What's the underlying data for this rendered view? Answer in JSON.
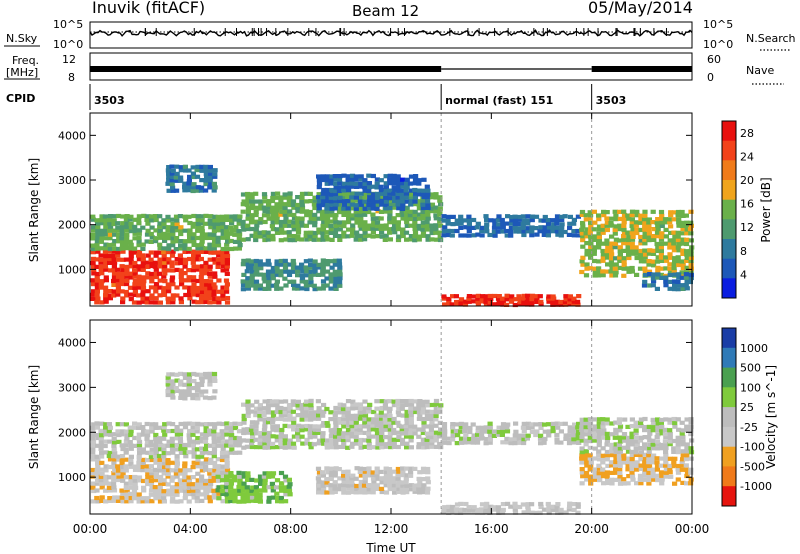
{
  "header": {
    "station": "Inuvik (fitACF)",
    "beam": "Beam 12",
    "date": "05/May/2014"
  },
  "noise_panel": {
    "left_label": "N.Sky",
    "right_label": "N.Search",
    "left_ticks": [
      "10^5",
      "10^0"
    ],
    "right_ticks": [
      "10^5",
      "10^0"
    ],
    "right_line_style": "dotted"
  },
  "freq_panel": {
    "left_label_top": "Freq.",
    "left_label_bottom": "[MHz]",
    "right_label": "Nave",
    "left_ticks": [
      "12",
      "8"
    ],
    "right_ticks": [
      "60",
      "0"
    ],
    "right_line_style": "dotted"
  },
  "cpid_panel": {
    "label": "CPID",
    "segments": [
      {
        "label": "3503",
        "start_hour": 0,
        "end_hour": 14
      },
      {
        "label": "normal (fast) 151",
        "start_hour": 14,
        "end_hour": 20
      },
      {
        "label": "3503",
        "start_hour": 20,
        "end_hour": 24
      }
    ]
  },
  "x_axis": {
    "label": "Time UT",
    "ticks": [
      "00:00",
      "04:00",
      "08:00",
      "12:00",
      "16:00",
      "20:00",
      "00:00"
    ],
    "tick_hours": [
      0,
      4,
      8,
      12,
      16,
      20,
      24
    ]
  },
  "colors": {
    "power": [
      "#0a1de0",
      "#1d58b8",
      "#2e7a9e",
      "#4e9a6f",
      "#6ab04a",
      "#f0a41c",
      "#f07b1a",
      "#f2421a",
      "#e8100e"
    ],
    "velocity": [
      "#1a3da6",
      "#2f7ab7",
      "#4aa050",
      "#7fca3c",
      "#bdbdbd",
      "#c8c8c8",
      "#f0a020",
      "#f07a1a",
      "#e6140e"
    ]
  },
  "chart_data": [
    {
      "type": "heatmap",
      "title": "",
      "xlabel": "Time UT",
      "ylabel": "Slant Range [km]",
      "xlim": [
        0,
        24
      ],
      "ylim": [
        180,
        4500
      ],
      "yticks": [
        1000,
        2000,
        3000,
        4000
      ],
      "colorbar": {
        "label": "Power [dB]",
        "ticks": [
          "4",
          "8",
          "12",
          "16",
          "20",
          "24",
          "28"
        ],
        "range": [
          0,
          30
        ]
      },
      "echo_regions": [
        {
          "t0": 0.0,
          "t1": 5.5,
          "r0": 300,
          "r1": 1500,
          "value": 26
        },
        {
          "t0": 0.0,
          "t1": 6.0,
          "r0": 1500,
          "r1": 2300,
          "value": 14
        },
        {
          "t0": 3.0,
          "t1": 5.0,
          "r0": 2800,
          "r1": 3400,
          "value": 8
        },
        {
          "t0": 6.0,
          "t1": 14.0,
          "r0": 1700,
          "r1": 2800,
          "value": 14
        },
        {
          "t0": 6.0,
          "t1": 10.0,
          "r0": 600,
          "r1": 1300,
          "value": 10
        },
        {
          "t0": 9.0,
          "t1": 13.5,
          "r0": 2400,
          "r1": 3200,
          "value": 6
        },
        {
          "t0": 14.0,
          "t1": 19.5,
          "r0": 1800,
          "r1": 2300,
          "value": 7
        },
        {
          "t0": 14.0,
          "t1": 19.5,
          "r0": 250,
          "r1": 500,
          "value": 27
        },
        {
          "t0": 19.5,
          "t1": 24.0,
          "r0": 900,
          "r1": 2400,
          "value": 16
        },
        {
          "t0": 22.0,
          "t1": 24.0,
          "r0": 600,
          "r1": 1000,
          "value": 8
        }
      ]
    },
    {
      "type": "heatmap",
      "title": "",
      "xlabel": "Time UT",
      "ylabel": "Slant Range [km]",
      "xlim": [
        0,
        24
      ],
      "ylim": [
        180,
        4500
      ],
      "yticks": [
        1000,
        2000,
        3000,
        4000
      ],
      "colorbar": {
        "label": "Velocity [m s^-1]",
        "ticks": [
          "1000",
          "500",
          "100",
          "25",
          "-25",
          "-100",
          "-500",
          "-1000"
        ],
        "range": [
          -1200,
          1200
        ]
      },
      "echo_regions": [
        {
          "t0": 0.0,
          "t1": 5.5,
          "r0": 500,
          "r1": 1500,
          "value": -300
        },
        {
          "t0": 0.0,
          "t1": 6.0,
          "r0": 1500,
          "r1": 2300,
          "value": 0
        },
        {
          "t0": 3.0,
          "t1": 5.0,
          "r0": 2800,
          "r1": 3400,
          "value": 0
        },
        {
          "t0": 5.0,
          "t1": 8.0,
          "r0": 500,
          "r1": 1200,
          "value": 300
        },
        {
          "t0": 6.0,
          "t1": 14.0,
          "r0": 1700,
          "r1": 2800,
          "value": 0
        },
        {
          "t0": 9.0,
          "t1": 13.5,
          "r0": 700,
          "r1": 1300,
          "value": -200
        },
        {
          "t0": 14.0,
          "t1": 19.5,
          "r0": 1800,
          "r1": 2300,
          "value": 0
        },
        {
          "t0": 14.0,
          "t1": 19.5,
          "r0": 250,
          "r1": 500,
          "value": -150
        },
        {
          "t0": 19.5,
          "t1": 24.0,
          "r0": 900,
          "r1": 1600,
          "value": -400
        },
        {
          "t0": 19.5,
          "t1": 24.0,
          "r0": 1600,
          "r1": 2400,
          "value": 0
        }
      ]
    }
  ]
}
